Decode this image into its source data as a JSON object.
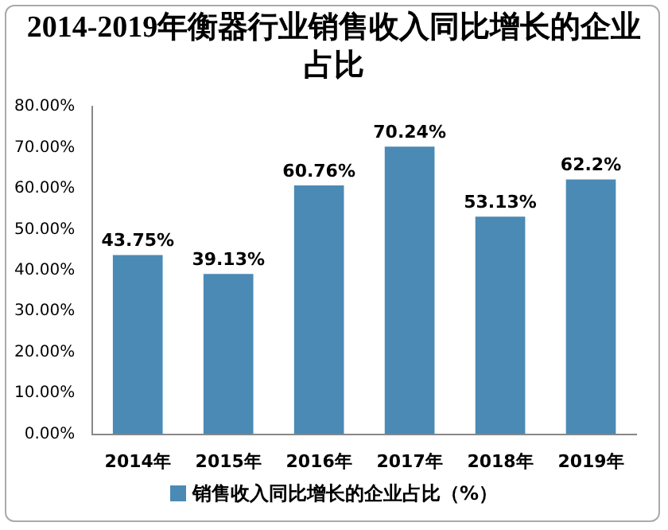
{
  "chart_data": {
    "type": "bar",
    "title": "2014-2019年衡器行业销售收入同比增长的企业占比",
    "categories": [
      "2014年",
      "2015年",
      "2016年",
      "2017年",
      "2018年",
      "2019年"
    ],
    "series": [
      {
        "name": "销售收入同比增长的企业占比（%）",
        "color": "#4a8ab5",
        "values": [
          43.75,
          39.13,
          60.76,
          70.24,
          53.13,
          62.2
        ],
        "value_labels": [
          "43.75%",
          "39.13%",
          "60.76%",
          "70.24%",
          "53.13%",
          "62.2%"
        ]
      }
    ],
    "ylim": [
      0,
      80
    ],
    "yticks": [
      {
        "value": 0,
        "label": "0.00%"
      },
      {
        "value": 10,
        "label": "10.00%"
      },
      {
        "value": 20,
        "label": "20.00%"
      },
      {
        "value": 30,
        "label": "30.00%"
      },
      {
        "value": 40,
        "label": "40.00%"
      },
      {
        "value": 50,
        "label": "50.00%"
      },
      {
        "value": 60,
        "label": "60.00%"
      },
      {
        "value": 70,
        "label": "70.00%"
      },
      {
        "value": 80,
        "label": "80.00%"
      }
    ],
    "grid": false,
    "legend": "bottom"
  }
}
